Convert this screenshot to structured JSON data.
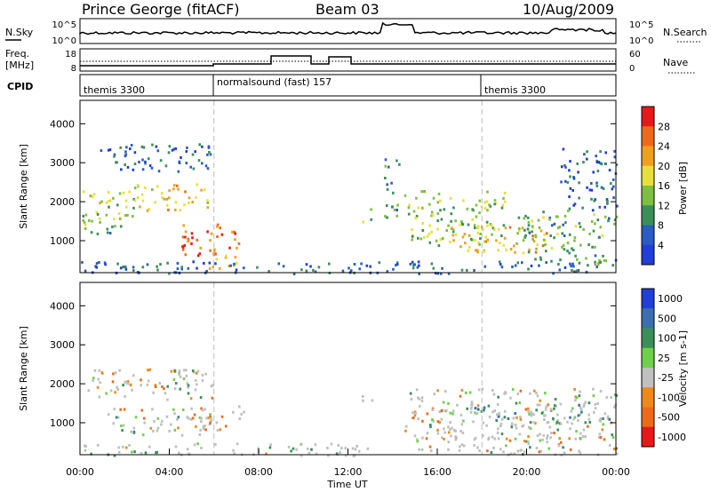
{
  "header": {
    "station": "Prince George (fitACF)",
    "beam": "Beam 03",
    "date": "10/Aug/2009"
  },
  "noise_panel": {
    "left_label": "N.Sky",
    "left_ticks": [
      "10^5",
      "10^0"
    ],
    "right_label": "N.Search",
    "right_ticks": [
      "10^5",
      "10^0"
    ]
  },
  "freq_panel": {
    "left_label_1": "Freq.",
    "left_label_2": "[MHz]",
    "left_ticks": [
      "18",
      "8"
    ],
    "right_label": "Nave",
    "right_ticks": [
      "60",
      "0"
    ]
  },
  "cpid_panel": {
    "label": "CPID",
    "segments": [
      "themis 3300",
      "normalsound (fast) 157",
      "themis 3300"
    ]
  },
  "time_axis": {
    "ticks": [
      "00:00",
      "04:00",
      "08:00",
      "12:00",
      "16:00",
      "20:00",
      "00:00"
    ],
    "label": "Time UT"
  },
  "colors": {
    "power_scale": [
      "#1f3fd8",
      "#2a5cc4",
      "#3a8f5a",
      "#7fbf3f",
      "#e8e03a",
      "#f0a020",
      "#ee6a1a",
      "#e8181a"
    ],
    "velocity_scale": [
      "#1f3fd8",
      "#3a6fb0",
      "#3a8f5a",
      "#6fd04a",
      "#c0c0c0",
      "#ee8a1a",
      "#ee6a1a",
      "#e8181a"
    ]
  },
  "chart_data": [
    {
      "type": "heatmap",
      "title": "Power",
      "ylabel": "Slant Range [km]",
      "xlabel": "Time UT",
      "x_ticks": [
        "00:00",
        "04:00",
        "08:00",
        "12:00",
        "16:00",
        "20:00",
        "00:00"
      ],
      "y_ticks": [
        1000,
        2000,
        3000,
        4000
      ],
      "ylim": [
        180,
        4600
      ],
      "xlim_hours": [
        0,
        24
      ],
      "colorbar": {
        "label": "Power [dB]",
        "ticks": [
          4,
          8,
          12,
          16,
          20,
          24,
          28
        ],
        "range": [
          0,
          30
        ]
      },
      "echo_regions": [
        {
          "t0": 0.0,
          "t1": 2.6,
          "r0": 1500,
          "r1": 2300,
          "level": 16
        },
        {
          "t0": 0.0,
          "t1": 1.8,
          "r0": 1200,
          "r1": 1700,
          "level": 12
        },
        {
          "t0": 2.4,
          "t1": 5.8,
          "r0": 1800,
          "r1": 2500,
          "level": 20
        },
        {
          "t0": 0.5,
          "t1": 5.9,
          "r0": 2800,
          "r1": 3500,
          "level": 6
        },
        {
          "t0": 4.5,
          "t1": 7.2,
          "r0": 600,
          "r1": 1500,
          "level": 26
        },
        {
          "t0": 5.5,
          "t1": 7.0,
          "r0": 300,
          "r1": 700,
          "level": 22
        },
        {
          "t0": 0.0,
          "t1": 24.0,
          "r0": 180,
          "r1": 500,
          "level": 6
        },
        {
          "t0": 12.6,
          "t1": 13.1,
          "r0": 1500,
          "r1": 1900,
          "level": 14
        },
        {
          "t0": 13.6,
          "t1": 14.3,
          "r0": 1600,
          "r1": 3200,
          "level": 10
        },
        {
          "t0": 14.5,
          "t1": 19.0,
          "r0": 900,
          "r1": 2300,
          "level": 14
        },
        {
          "t0": 16.5,
          "t1": 21.0,
          "r0": 700,
          "r1": 1400,
          "level": 20
        },
        {
          "t0": 19.5,
          "t1": 24.0,
          "r0": 400,
          "r1": 1800,
          "level": 12
        },
        {
          "t0": 21.5,
          "t1": 24.0,
          "r0": 1800,
          "r1": 3400,
          "level": 6
        }
      ]
    },
    {
      "type": "heatmap",
      "title": "Velocity",
      "ylabel": "Slant Range [km]",
      "xlabel": "Time UT",
      "x_ticks": [
        "00:00",
        "04:00",
        "08:00",
        "12:00",
        "16:00",
        "20:00",
        "00:00"
      ],
      "y_ticks": [
        1000,
        2000,
        3000,
        4000
      ],
      "ylim": [
        180,
        4600
      ],
      "xlim_hours": [
        0,
        24
      ],
      "colorbar": {
        "label": "Velocity [m s-1]",
        "ticks": [
          "1000",
          "500",
          "100",
          "25",
          "-25",
          "-100",
          "-500",
          "-1000"
        ]
      },
      "echo_regions": [
        {
          "t0": 0.0,
          "t1": 6.0,
          "r0": 1600,
          "r1": 2400,
          "level": 0
        },
        {
          "t0": 1.0,
          "t1": 6.0,
          "r0": 700,
          "r1": 1400,
          "level": 0
        },
        {
          "t0": 5.0,
          "t1": 6.5,
          "r0": 800,
          "r1": 1400,
          "level": -100
        },
        {
          "t0": 6.5,
          "t1": 7.3,
          "r0": 1100,
          "r1": 1500,
          "level": 120
        },
        {
          "t0": 0.0,
          "t1": 13.0,
          "r0": 180,
          "r1": 500,
          "level": 100
        },
        {
          "t0": 12.6,
          "t1": 13.1,
          "r0": 1500,
          "r1": 1800,
          "level": 300
        },
        {
          "t0": 14.5,
          "t1": 24.0,
          "r0": 600,
          "r1": 1900,
          "level": 0
        },
        {
          "t0": 15.0,
          "t1": 24.0,
          "r0": 200,
          "r1": 700,
          "level": 0
        },
        {
          "t0": 17.0,
          "t1": 24.0,
          "r0": 1000,
          "r1": 1500,
          "level": 500
        }
      ]
    }
  ]
}
